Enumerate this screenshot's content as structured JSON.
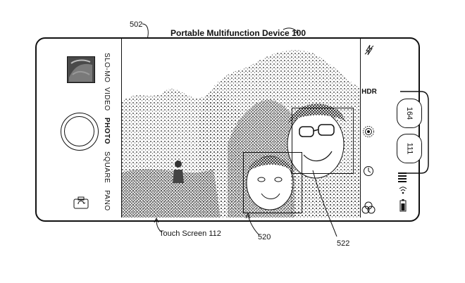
{
  "figure": {
    "device_label": "Portable Multifunction Device 100",
    "ref_device": "502",
    "touch_screen_label": "Touch Screen 112",
    "ref_face_small": "520",
    "ref_face_large": "522"
  },
  "modes": [
    {
      "label": "SLO-MO",
      "active": false
    },
    {
      "label": "VIDEO",
      "active": false
    },
    {
      "label": "PHOTO",
      "active": true
    },
    {
      "label": "SQUARE",
      "active": false
    },
    {
      "label": "PANO",
      "active": false
    }
  ],
  "right_controls": {
    "flash_icon": "flash-off-icon",
    "hdr_label": "HDR",
    "live_icon": "live-photo-icon",
    "timer_icon": "timer-icon",
    "filters_icon": "filters-icon"
  },
  "side_buttons": [
    "164",
    "111"
  ],
  "status": {
    "signal_icon": "signal-bars-icon",
    "wifi_icon": "wifi-icon",
    "battery_icon": "battery-icon"
  }
}
